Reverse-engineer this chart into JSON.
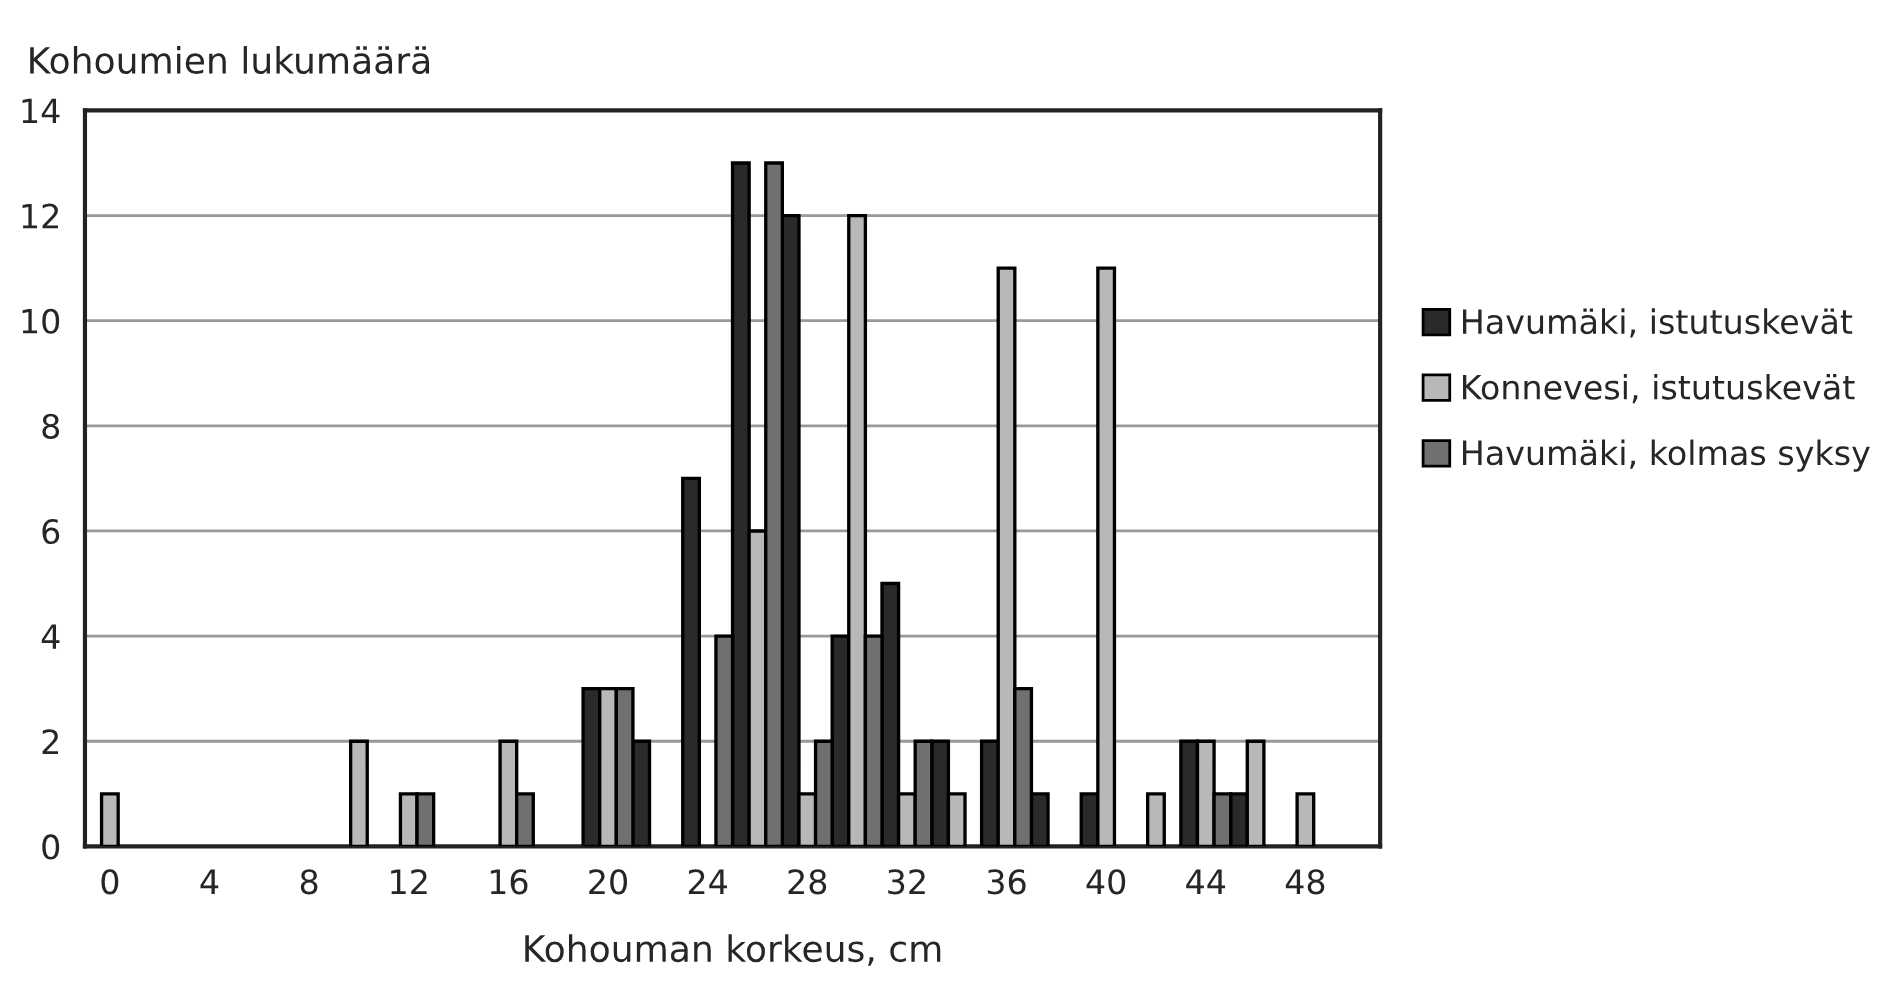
{
  "chart_data": {
    "type": "bar",
    "xlabel": "Kohouman korkeus, cm",
    "ylabel": "Kohoumien lukumäärä",
    "categories": [
      "0",
      null,
      "4",
      null,
      "8",
      null,
      "12",
      null,
      "16",
      null,
      "20",
      null,
      "24",
      null,
      "28",
      null,
      "32",
      null,
      "36",
      null,
      "40",
      null,
      "44",
      null,
      "48",
      null
    ],
    "series": [
      {
        "name": "Havumäki, istutuskevät",
        "color": "#2a2a2a",
        "values": [
          0,
          0,
          0,
          0,
          0,
          0,
          0,
          0,
          0,
          0,
          3,
          2,
          7,
          13,
          12,
          4,
          5,
          2,
          2,
          1,
          1,
          0,
          2,
          1,
          0,
          0
        ]
      },
      {
        "name": "Konnevesi, istutuskevät",
        "color": "#b8b8b8",
        "values": [
          1,
          0,
          0,
          0,
          0,
          2,
          1,
          0,
          2,
          0,
          3,
          0,
          0,
          6,
          1,
          12,
          1,
          1,
          11,
          0,
          11,
          1,
          2,
          2,
          1,
          0
        ]
      },
      {
        "name": "Havumäki, kolmas syksy",
        "color": "#707070",
        "values": [
          0,
          0,
          0,
          0,
          0,
          0,
          1,
          0,
          1,
          0,
          3,
          0,
          4,
          13,
          2,
          4,
          2,
          0,
          3,
          0,
          0,
          0,
          1,
          0,
          0,
          0
        ]
      }
    ],
    "ylim": [
      0,
      14
    ],
    "yticks": [
      0,
      2,
      4,
      6,
      8,
      10,
      12,
      14
    ],
    "grid": "y",
    "legend": "right"
  }
}
